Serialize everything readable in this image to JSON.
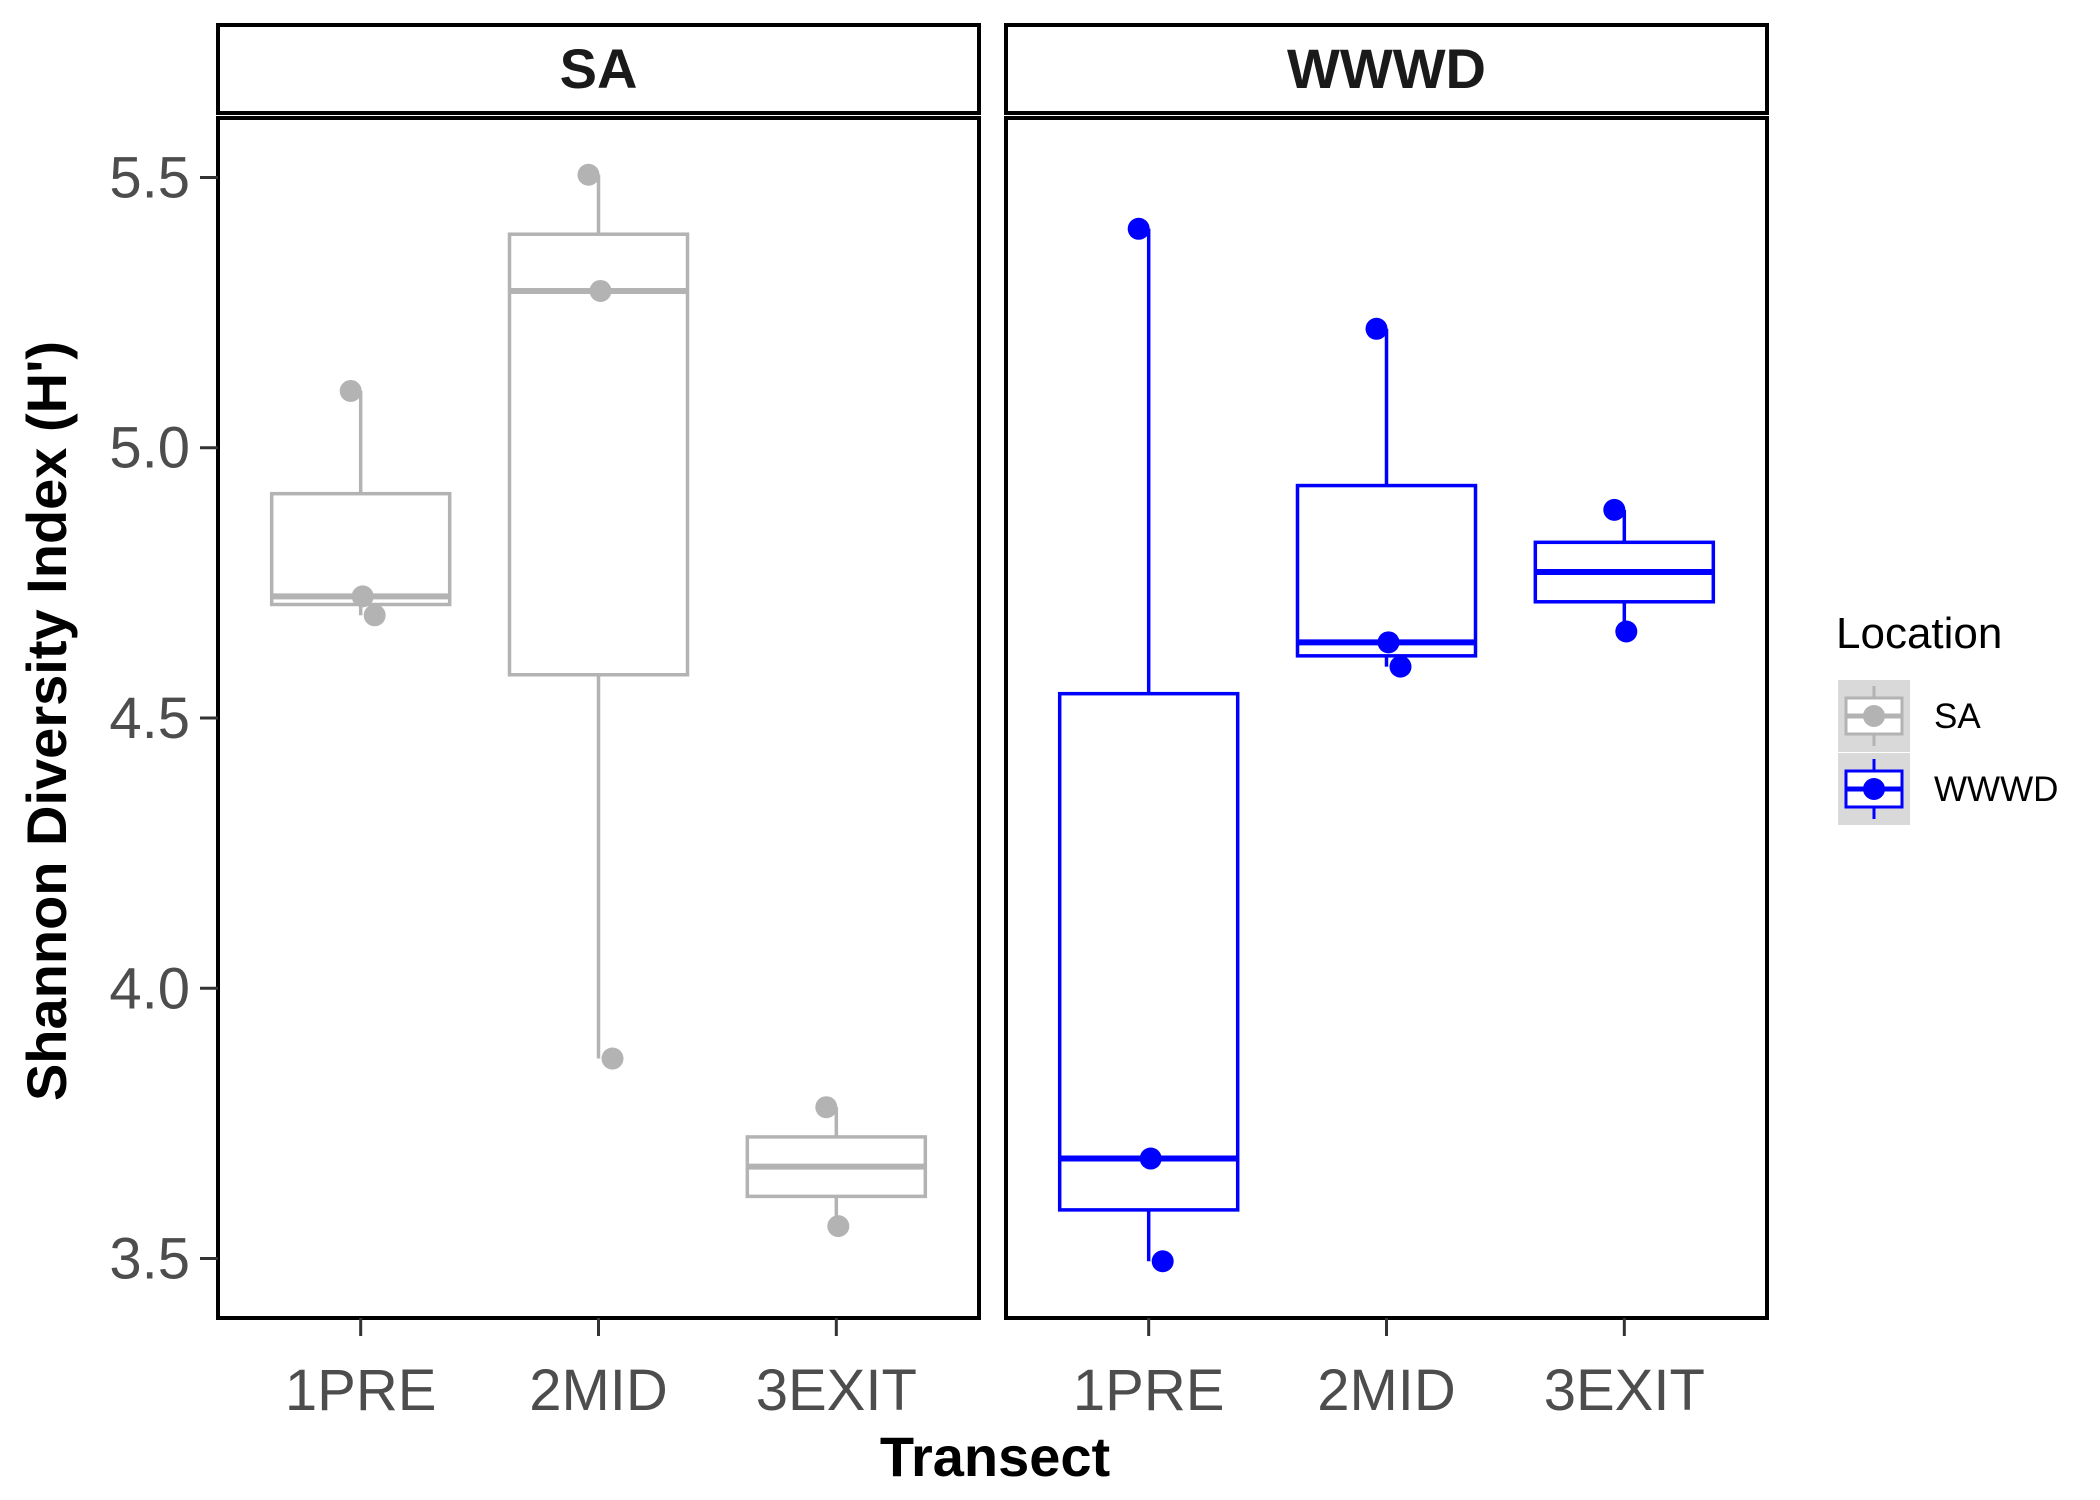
{
  "chart_data": {
    "type": "boxplot",
    "xlabel": "Transect",
    "ylabel": "Shannon Diversity Index (H')",
    "ylim": [
      3.39,
      5.61
    ],
    "yticks": [
      "3.5",
      "4.0",
      "4.5",
      "5.0",
      "5.5"
    ],
    "ytick_values": [
      3.5,
      4.0,
      4.5,
      5.0,
      5.5
    ],
    "categories": [
      "1PRE",
      "2MID",
      "3EXIT"
    ],
    "grid": false,
    "legend": {
      "title": "Location",
      "position": "right",
      "entries": [
        {
          "label": "SA",
          "color": "#b3b3b3"
        },
        {
          "label": "WWWD",
          "color": "#0000ff"
        }
      ]
    },
    "panels": [
      {
        "name": "SA",
        "color": "#b3b3b3",
        "boxes": [
          {
            "category": "1PRE",
            "min": 4.69,
            "q1": 4.71,
            "median": 4.725,
            "q3": 4.915,
            "max": 5.105,
            "points": [
              5.105,
              4.725,
              4.69
            ]
          },
          {
            "category": "2MID",
            "min": 3.87,
            "q1": 4.58,
            "median": 5.29,
            "q3": 5.395,
            "max": 5.505,
            "points": [
              5.505,
              5.29,
              3.87
            ]
          },
          {
            "category": "3EXIT",
            "min": 3.56,
            "q1": 3.615,
            "median": 3.67,
            "q3": 3.725,
            "max": 3.78,
            "points": [
              3.78,
              3.56
            ]
          }
        ]
      },
      {
        "name": "WWWD",
        "color": "#0000ff",
        "boxes": [
          {
            "category": "1PRE",
            "min": 3.495,
            "q1": 3.59,
            "median": 3.685,
            "q3": 4.545,
            "max": 5.405,
            "points": [
              5.405,
              3.685,
              3.495
            ]
          },
          {
            "category": "2MID",
            "min": 4.595,
            "q1": 4.615,
            "median": 4.64,
            "q3": 4.93,
            "max": 5.22,
            "points": [
              5.22,
              4.64,
              4.595
            ]
          },
          {
            "category": "3EXIT",
            "min": 4.66,
            "q1": 4.715,
            "median": 4.77,
            "q3": 4.825,
            "max": 4.885,
            "points": [
              4.885,
              4.66
            ]
          }
        ]
      }
    ]
  }
}
